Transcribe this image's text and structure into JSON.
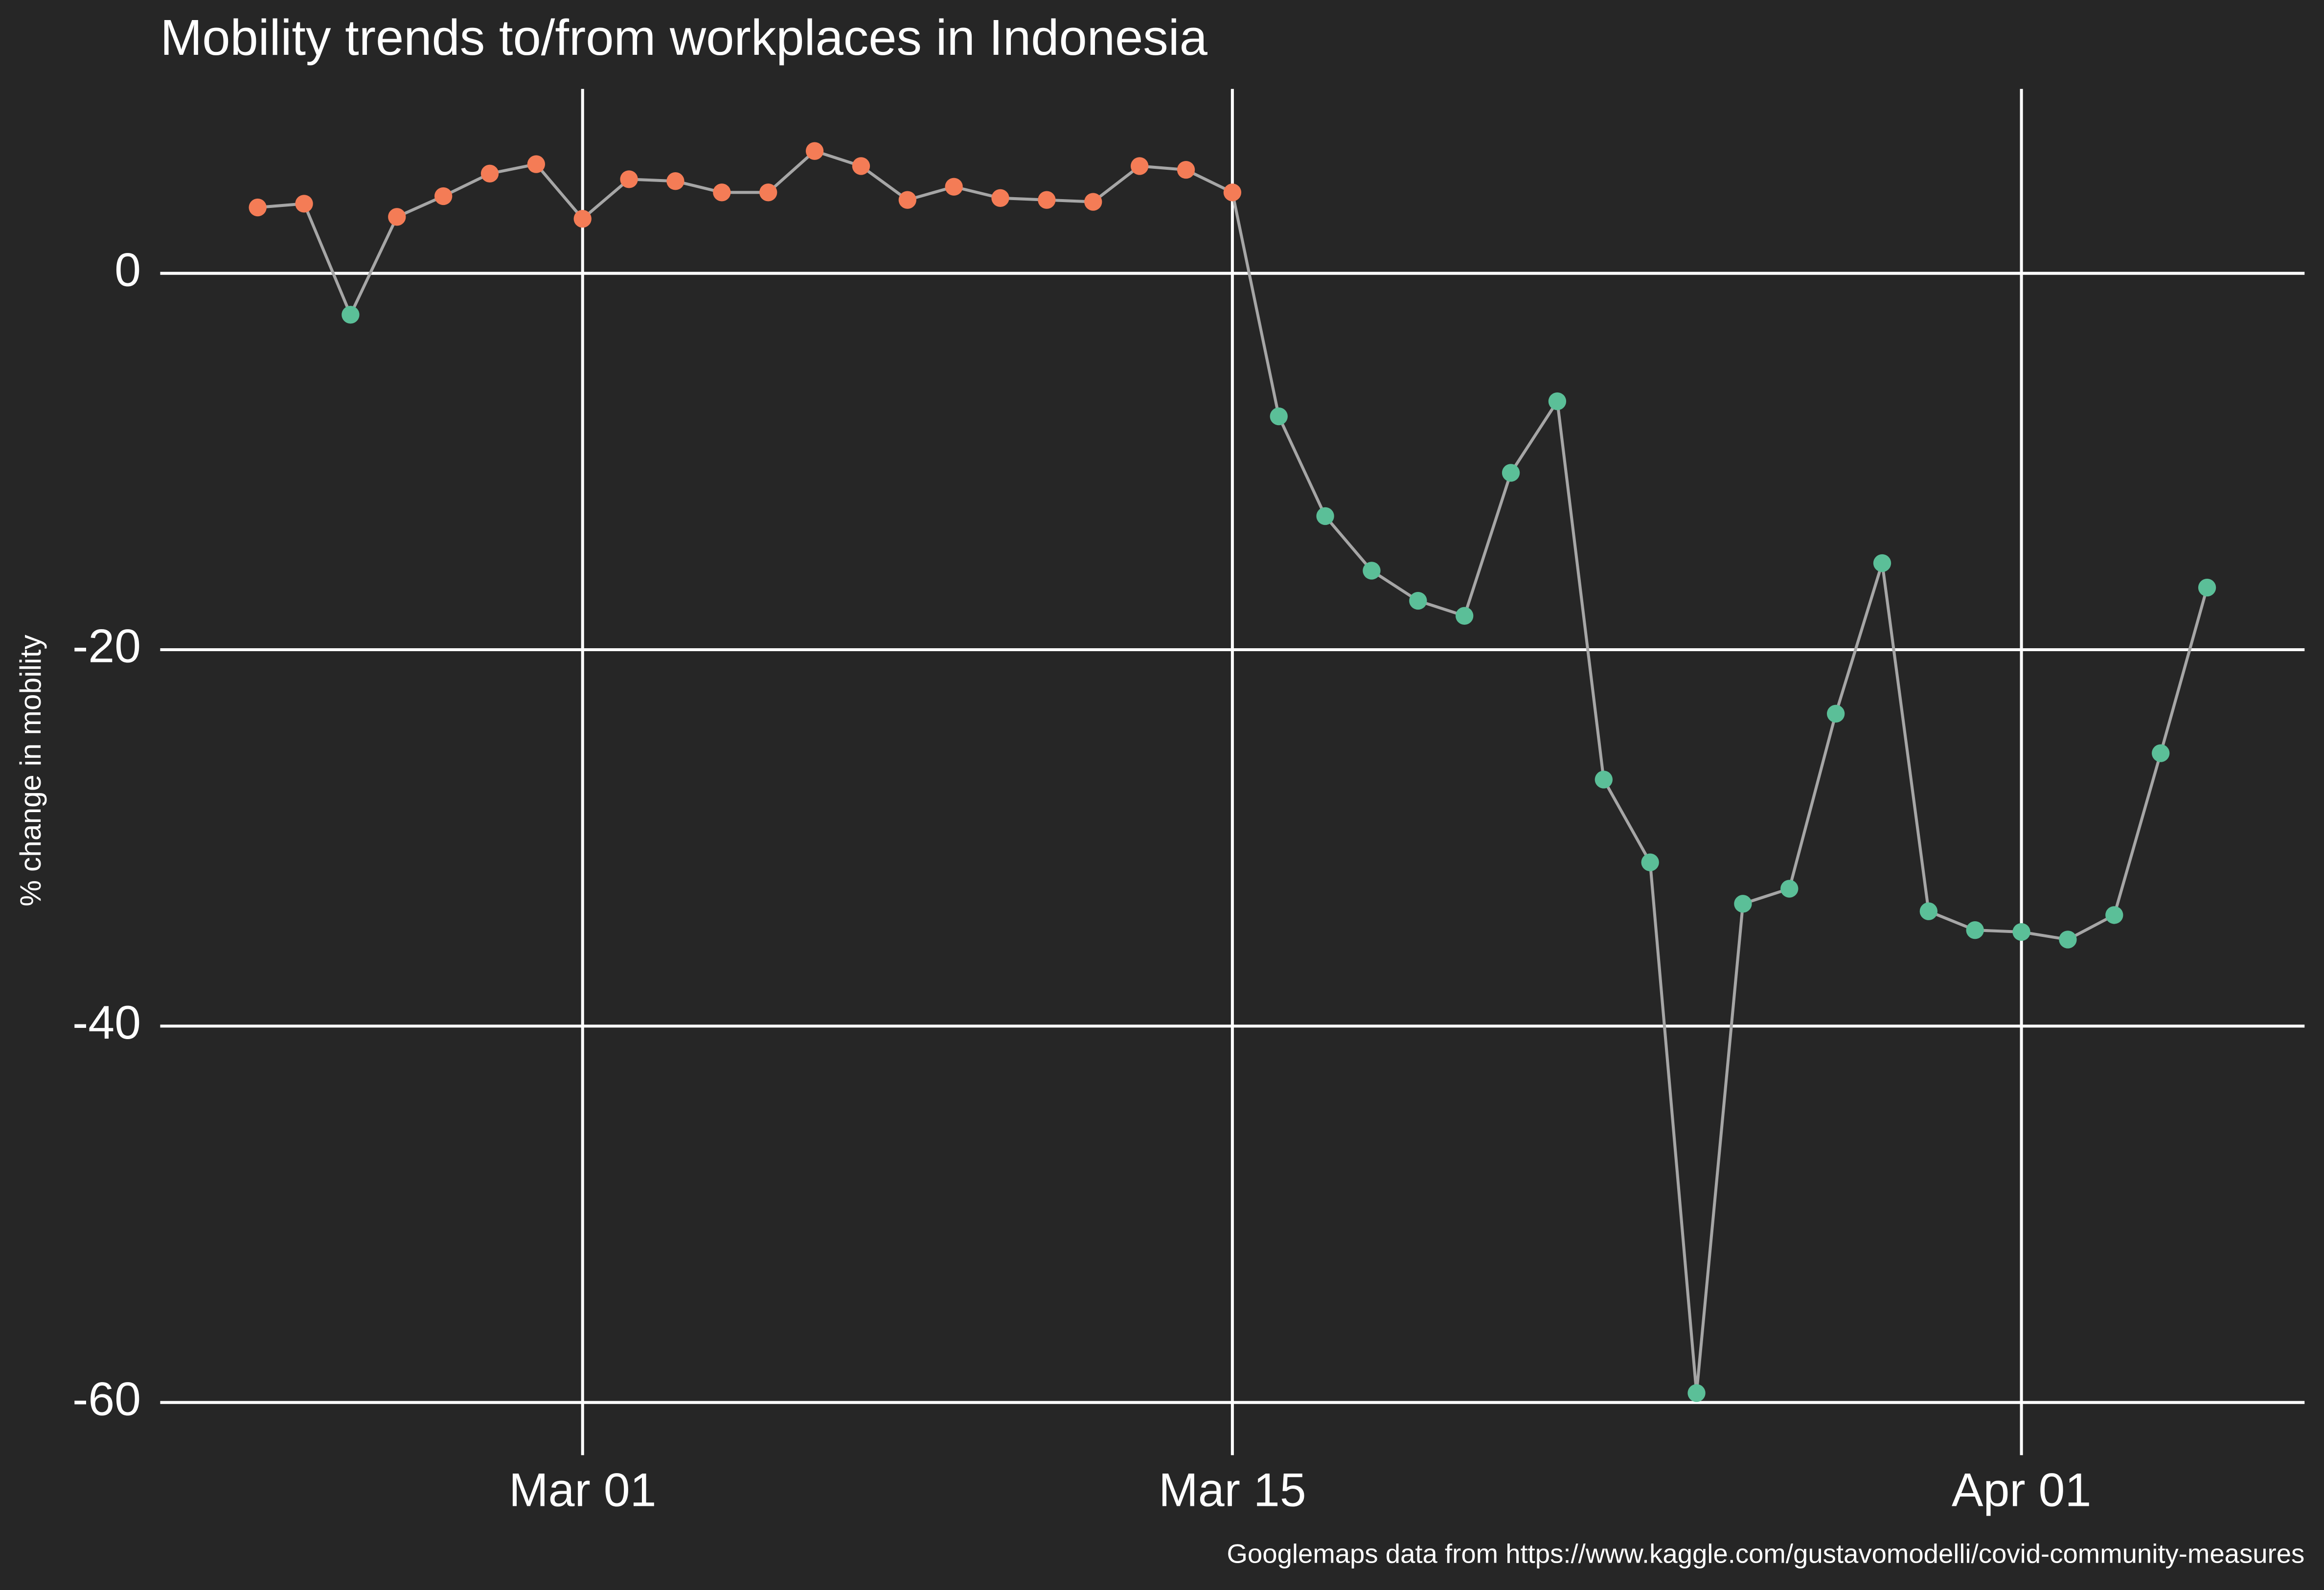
{
  "chart_data": {
    "type": "line",
    "title": "Mobility trends to/from workplaces in Indonesia",
    "y_label": "% change in mobility",
    "caption": "Googlemaps data from https://www.kaggle.com/gustavomodelli/covid-community-measures",
    "x": [
      "Feb 23",
      "Feb 24",
      "Feb 25",
      "Feb 26",
      "Feb 27",
      "Feb 28",
      "Feb 29",
      "Mar 01",
      "Mar 02",
      "Mar 03",
      "Mar 04",
      "Mar 05",
      "Mar 06",
      "Mar 07",
      "Mar 08",
      "Mar 09",
      "Mar 10",
      "Mar 11",
      "Mar 12",
      "Mar 13",
      "Mar 14",
      "Mar 15",
      "Mar 16",
      "Mar 17",
      "Mar 18",
      "Mar 19",
      "Mar 20",
      "Mar 21",
      "Mar 22",
      "Mar 23",
      "Mar 24",
      "Mar 25",
      "Mar 26",
      "Mar 27",
      "Mar 28",
      "Mar 29",
      "Mar 30",
      "Mar 31",
      "Apr 01",
      "Apr 02",
      "Apr 03",
      "Apr 04",
      "Apr 05"
    ],
    "values": [
      3.5,
      3.7,
      -2.2,
      3.0,
      4.1,
      5.3,
      5.8,
      2.9,
      5.0,
      4.9,
      4.3,
      4.3,
      6.5,
      5.7,
      3.9,
      4.6,
      4.0,
      3.9,
      3.8,
      5.7,
      5.5,
      4.3,
      -7.6,
      -12.9,
      -15.8,
      -17.4,
      -18.2,
      -10.6,
      -6.8,
      -26.9,
      -31.3,
      -59.5,
      -33.5,
      -32.7,
      -23.4,
      -15.4,
      -33.9,
      -34.9,
      -35.0,
      -35.4,
      -34.1,
      -25.5,
      -16.7
    ],
    "line_color": "#a6a6a6",
    "positive_color": "#f47c56",
    "negative_color": "#5bbf98",
    "xticks": [
      "Mar 01",
      "Mar 15",
      "Apr 01"
    ],
    "ylim": [
      -62.8,
      9.8
    ],
    "yticks": [
      0,
      -20,
      -40,
      -60
    ],
    "grid": true
  }
}
